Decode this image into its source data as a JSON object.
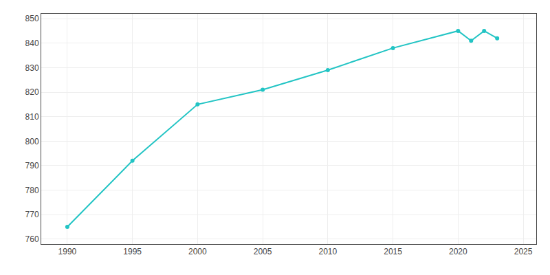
{
  "chart_data": {
    "type": "line",
    "x": [
      1990,
      1995,
      2000,
      2005,
      2010,
      2015,
      2020,
      2021,
      2022,
      2023
    ],
    "values": [
      765,
      792,
      815,
      821,
      829,
      838,
      845,
      841,
      845,
      842
    ],
    "color": "#22c4c4",
    "marker": "circle",
    "xlim": [
      1988,
      2026
    ],
    "ylim": [
      758,
      852
    ],
    "xticks": [
      1990,
      1995,
      2000,
      2005,
      2010,
      2015,
      2020,
      2025
    ],
    "yticks": [
      760,
      770,
      780,
      790,
      800,
      810,
      820,
      830,
      840,
      850
    ],
    "grid": true
  }
}
